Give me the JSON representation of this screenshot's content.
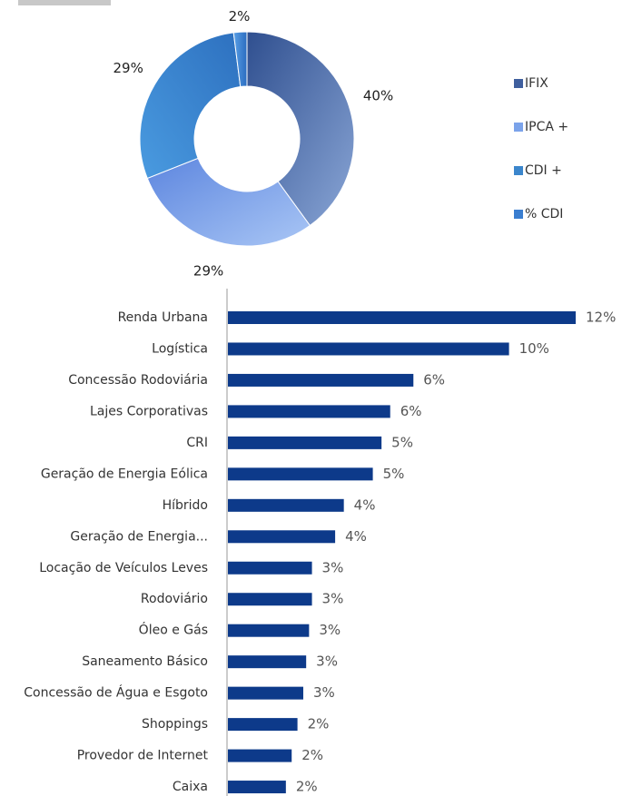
{
  "chart_data": [
    {
      "type": "donut",
      "categories": [
        "IFIX",
        "IPCA +",
        "CDI +",
        "% CDI"
      ],
      "values": [
        40,
        29,
        29,
        2
      ],
      "value_labels": [
        "40%",
        "29%",
        "29%",
        "2%"
      ],
      "colors": [
        "#3f5f9e",
        "#7ba3ea",
        "#3b86cc",
        "#3a7ed0"
      ],
      "legend": "right"
    },
    {
      "type": "barh",
      "categories": [
        "Renda Urbana",
        "Logística",
        "Concessão Rodoviária",
        "Lajes Corporativas",
        "CRI",
        "Geração de Energia Eólica",
        "Híbrido",
        "Geração de Energia...",
        "Locação de Veículos Leves",
        "Rodoviário",
        "Óleo e Gás",
        "Saneamento Básico",
        "Concessão de Água e Esgoto",
        "Shoppings",
        "Provedor de Internet",
        "Caixa"
      ],
      "values": [
        12.0,
        9.7,
        6.4,
        5.6,
        5.3,
        5.0,
        4.0,
        3.7,
        2.9,
        2.9,
        2.8,
        2.7,
        2.6,
        2.4,
        2.2,
        2.0
      ],
      "value_labels": [
        "12%",
        "10%",
        "6%",
        "6%",
        "5%",
        "5%",
        "4%",
        "4%",
        "3%",
        "3%",
        "3%",
        "3%",
        "3%",
        "2%",
        "2%",
        "2%"
      ],
      "color": "#0d3a8a"
    }
  ]
}
